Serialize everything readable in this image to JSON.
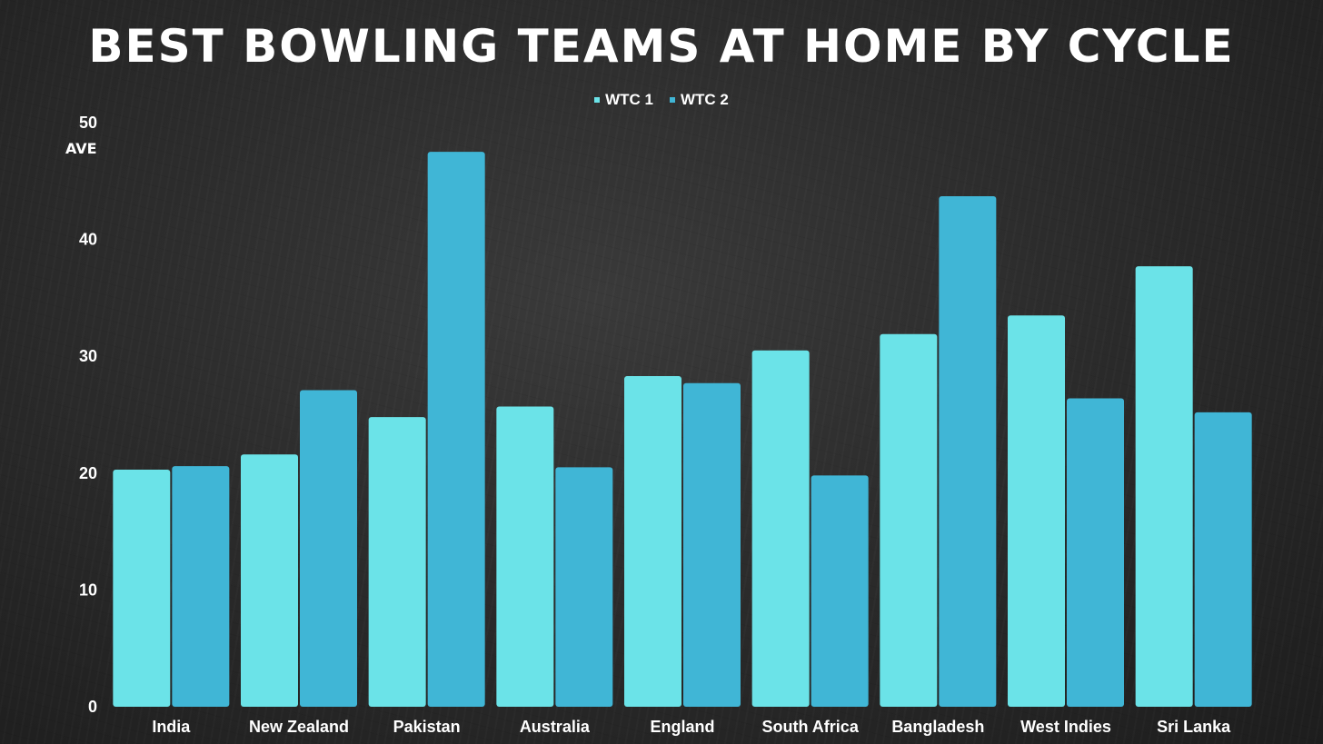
{
  "chart_data": {
    "type": "bar",
    "title": "Best Bowling Teams at Home by Cycle",
    "xlabel": "",
    "ylabel": "AVE",
    "ylim": [
      0,
      50
    ],
    "yticks": [
      0,
      10,
      20,
      30,
      40,
      50
    ],
    "grid": false,
    "legend_position": "top-center",
    "categories": [
      "India",
      "New Zealand",
      "Pakistan",
      "Australia",
      "England",
      "South Africa",
      "Bangladesh",
      "West Indies",
      "Sri Lanka"
    ],
    "series": [
      {
        "name": "WTC 1",
        "color": "#6be3e8",
        "values": [
          20.3,
          21.6,
          24.8,
          25.7,
          28.3,
          30.5,
          31.9,
          33.5,
          37.7
        ]
      },
      {
        "name": "WTC 2",
        "color": "#40b6d6",
        "values": [
          20.6,
          27.1,
          47.5,
          20.5,
          27.7,
          19.8,
          43.7,
          26.4,
          25.2
        ]
      }
    ]
  }
}
